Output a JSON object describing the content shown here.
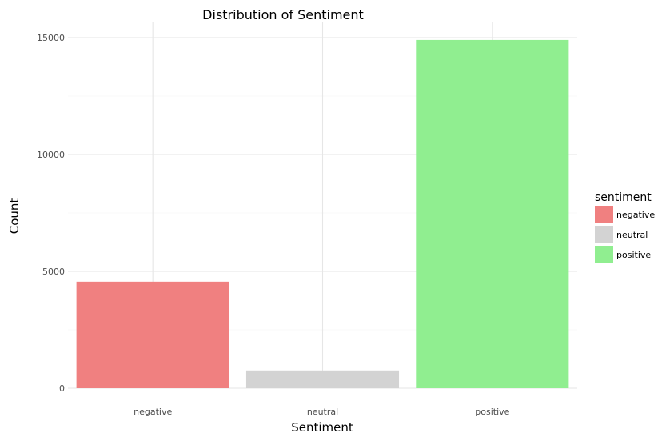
{
  "chart_data": {
    "type": "bar",
    "title": "Distribution of Sentiment",
    "xlabel": "Sentiment",
    "ylabel": "Count",
    "categories": [
      "negative",
      "neutral",
      "positive"
    ],
    "values": [
      4560,
      760,
      14900
    ],
    "colors": [
      "#f08080",
      "#d3d3d3",
      "#90ee90"
    ],
    "ylim": [
      0,
      15600
    ],
    "yticks": [
      0,
      5000,
      10000,
      15000
    ],
    "grid": true,
    "legend": {
      "title": "sentiment",
      "placement": "right",
      "entries": [
        {
          "label": "negative",
          "color": "#f08080"
        },
        {
          "label": "neutral",
          "color": "#d3d3d3"
        },
        {
          "label": "positive",
          "color": "#90ee90"
        }
      ]
    }
  }
}
